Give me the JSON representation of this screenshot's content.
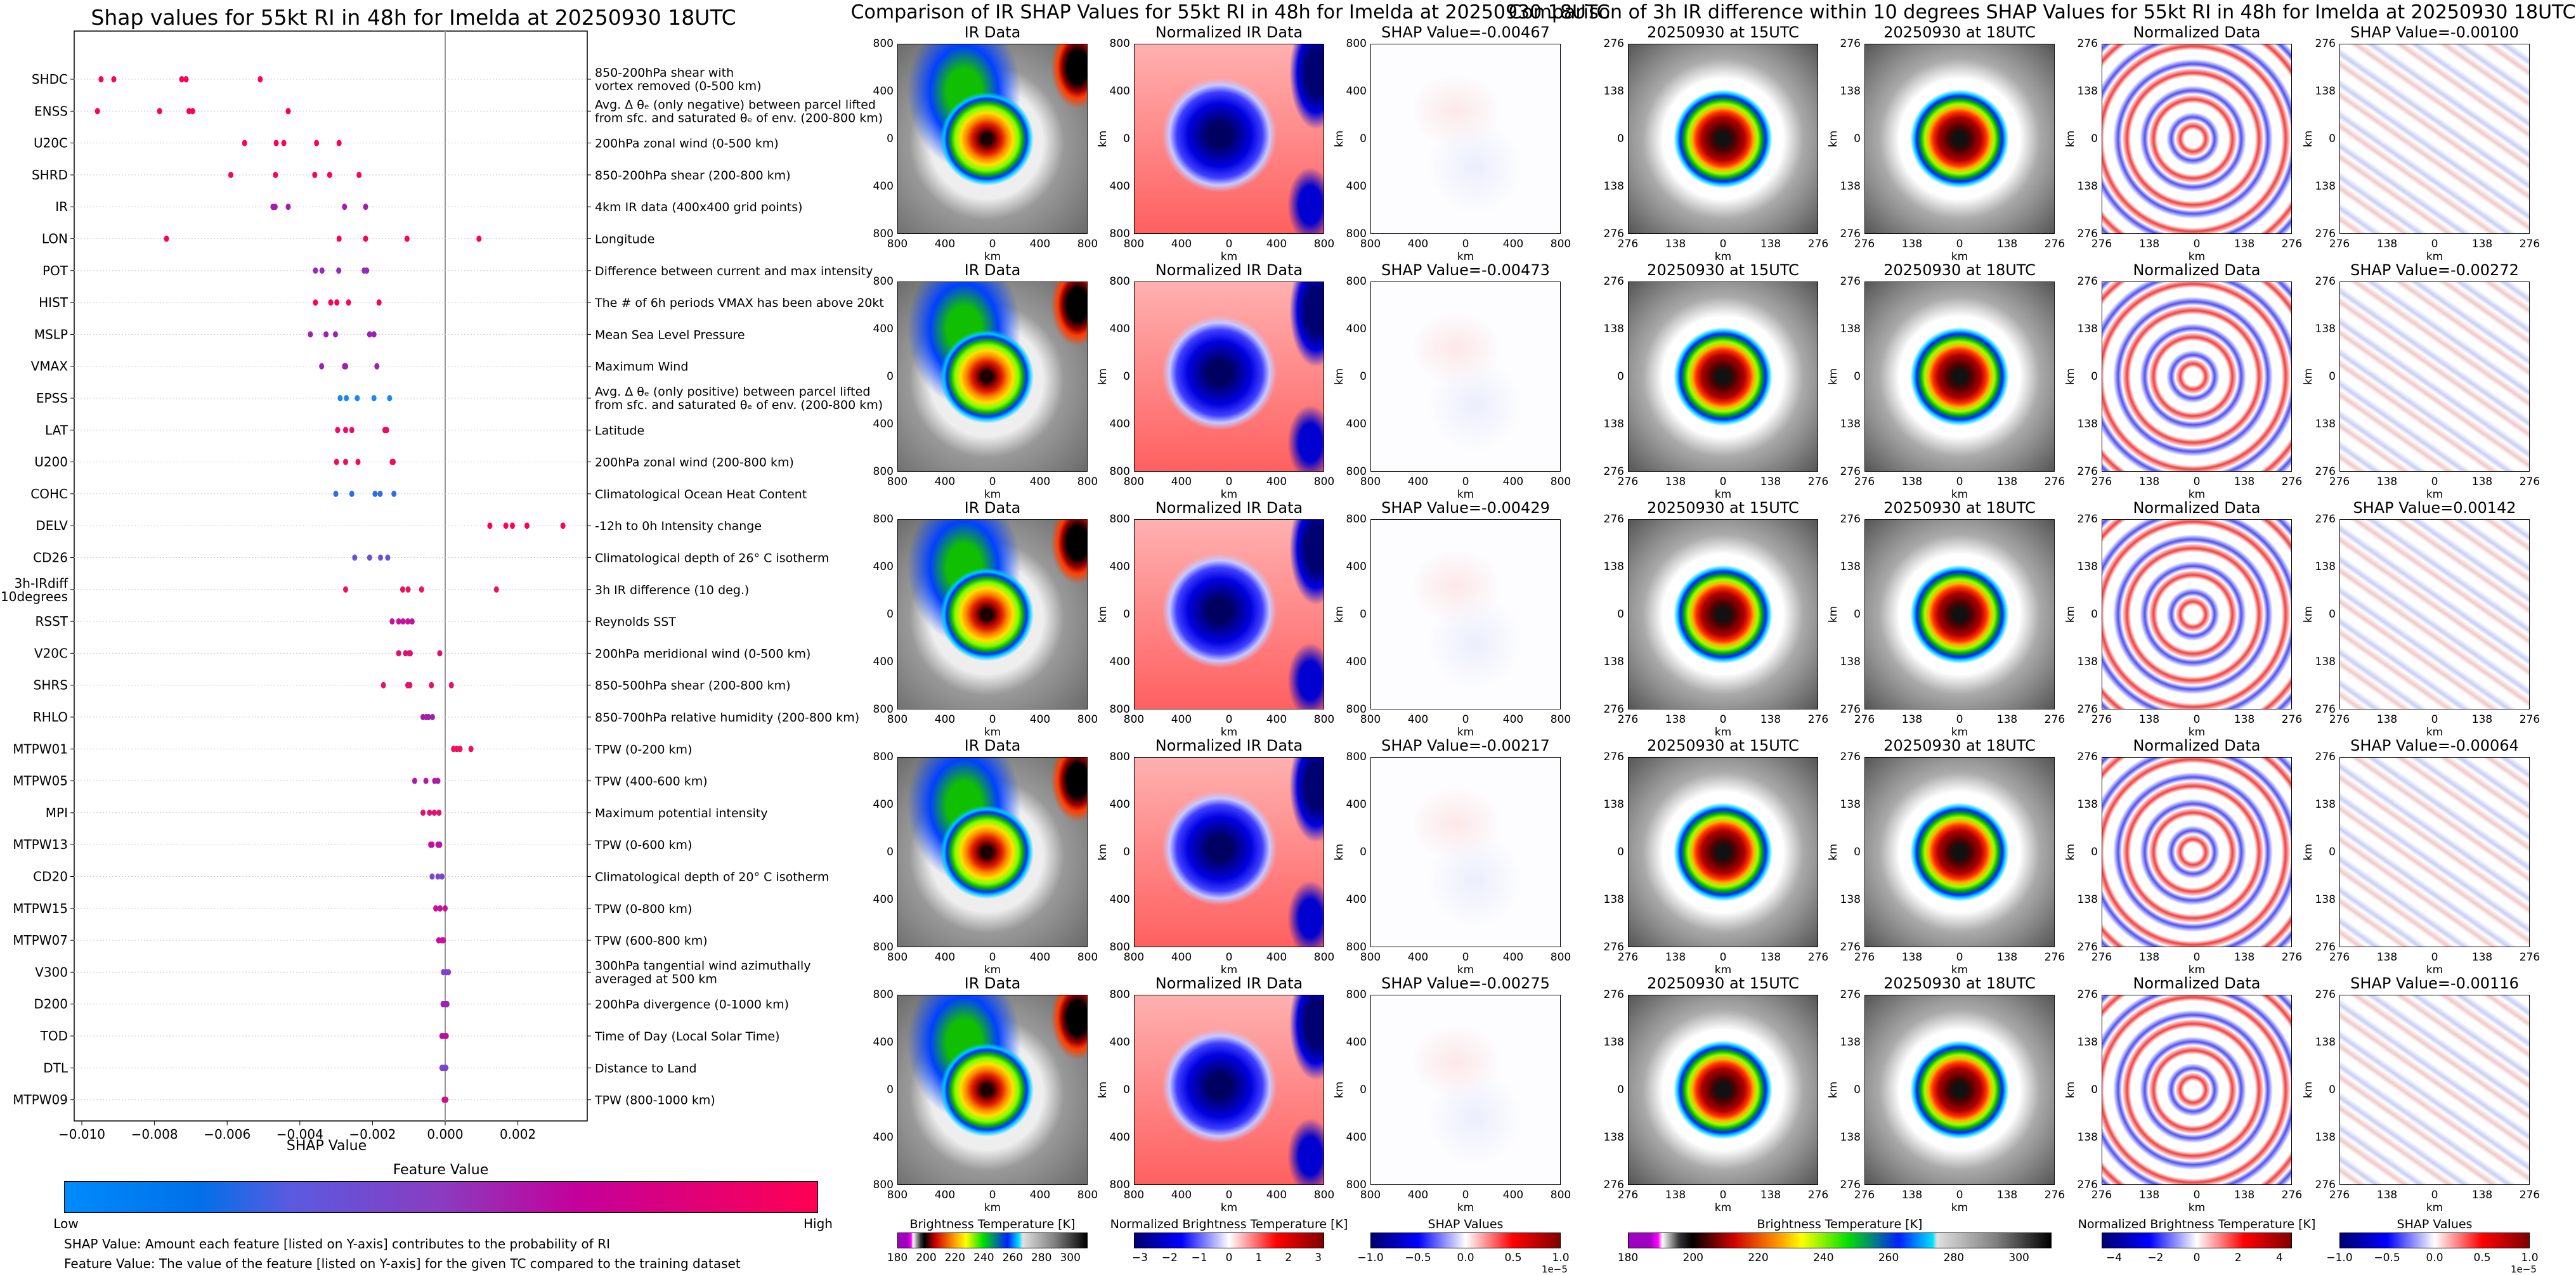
{
  "left_chart": {
    "title": "Shap values for 55kt RI in 48h for Imelda at 20250930 18UTC",
    "xlabel": "SHAP Value",
    "colorbar_title": "Feature Value",
    "colorbar_low": "Low",
    "colorbar_high": "High",
    "note1": "SHAP Value: Amount each feature [listed on Y-axis] contributes to the probability of RI",
    "note2": "Feature Value: The value of the feature [listed on Y-axis] for the given TC compared to the training dataset"
  },
  "chart_data": {
    "type": "scatter",
    "title": "Shap values for 55kt RI in 48h for Imelda at 20250930 18UTC",
    "xlabel": "SHAP Value",
    "xlim": [
      -0.0103,
      0.0039
    ],
    "xticks": [
      "−0.010",
      "−0.008",
      "−0.006",
      "−0.004",
      "−0.002",
      "0.000",
      "0.002"
    ],
    "xtick_values": [
      -0.01,
      -0.008,
      -0.006,
      -0.004,
      -0.002,
      0.0,
      0.002
    ],
    "colormap": {
      "low": "#008bfb",
      "high": "#ff0052"
    },
    "features": [
      {
        "name": "SHDC",
        "desc": "850-200hPa shear with\nvortex removed (0-500 km)",
        "color": "#ff0052",
        "values": [
          -0.00947,
          -0.00912,
          -0.00725,
          -0.00713,
          -0.00509
        ]
      },
      {
        "name": "ENSS",
        "desc": "Avg. Δ θₑ (only negative) between parcel lifted\nfrom sfc. and saturated θₑ of env. (200-800 km)",
        "color": "#ff0052",
        "values": [
          -0.00957,
          -0.00786,
          -0.00705,
          -0.00695,
          -0.00432
        ]
      },
      {
        "name": "U20C",
        "desc": "200hPa zonal wind (0-500 km)",
        "color": "#ff0052",
        "values": [
          -0.00552,
          -0.00465,
          -0.00444,
          -0.00354,
          -0.00292
        ]
      },
      {
        "name": "SHRD",
        "desc": "850-200hPa shear (200-800 km)",
        "color": "#ff0055",
        "values": [
          -0.0059,
          -0.00467,
          -0.00359,
          -0.00318,
          -0.00237
        ]
      },
      {
        "name": "IR",
        "desc": "4km IR data (400x400 grid points)",
        "color": "#a81ab0",
        "values": [
          -0.00474,
          -0.00468,
          -0.00432,
          -0.00277,
          -0.00219
        ]
      },
      {
        "name": "LON",
        "desc": "Longitude",
        "color": "#ff0055",
        "values": [
          -0.00767,
          -0.00292,
          -0.00219,
          -0.00105,
          0.00093
        ]
      },
      {
        "name": "POT",
        "desc": "Difference between current and max intensity",
        "color": "#9a28b8",
        "values": [
          -0.00357,
          -0.00339,
          -0.00293,
          -0.00223,
          -0.00216
        ]
      },
      {
        "name": "HIST",
        "desc": "The # of 6h periods VMAX has been above 20kt",
        "color": "#ff0058",
        "values": [
          -0.00357,
          -0.00315,
          -0.00298,
          -0.00266,
          -0.00182
        ]
      },
      {
        "name": "MSLP",
        "desc": "Mean Sea Level Pressure",
        "color": "#a020b0",
        "values": [
          -0.00371,
          -0.00328,
          -0.00302,
          -0.00208,
          -0.00196
        ]
      },
      {
        "name": "VMAX",
        "desc": "Maximum Wind",
        "color": "#a020b0",
        "values": [
          -0.0034,
          -0.00277,
          -0.00274,
          -0.00188
        ]
      },
      {
        "name": "EPSS",
        "desc": "Avg. Δ θₑ (only positive) between parcel lifted\nfrom sfc. and saturated θₑ of env. (200-800 km)",
        "color": "#1a8af0",
        "values": [
          -0.00289,
          -0.00272,
          -0.00242,
          -0.00196,
          -0.00153
        ]
      },
      {
        "name": "LAT",
        "desc": "Latitude",
        "color": "#ee0a66",
        "values": [
          -0.00296,
          -0.00274,
          -0.00257,
          -0.00166,
          -0.00161
        ]
      },
      {
        "name": "U200",
        "desc": "200hPa zonal wind (200-800 km)",
        "color": "#f50a5a",
        "values": [
          -0.00299,
          -0.00274,
          -0.0024,
          -0.00146,
          -0.00143
        ]
      },
      {
        "name": "COHC",
        "desc": "Climatological Ocean Heat Content",
        "color": "#2a6ee8",
        "values": [
          -0.00301,
          -0.00257,
          -0.00193,
          -0.00179,
          -0.00141
        ]
      },
      {
        "name": "DELV",
        "desc": "-12h to 0h Intensity change",
        "color": "#ff0052",
        "values": [
          0.00123,
          0.00167,
          0.00185,
          0.00225,
          0.00324
        ]
      },
      {
        "name": "CD26",
        "desc": "Climatological depth of 26° C isotherm",
        "color": "#6a50d8",
        "values": [
          -0.00249,
          -0.00208,
          -0.00178,
          -0.00158
        ]
      },
      {
        "name": "3h-IRdiff\n10degrees",
        "desc": "3h IR difference (10 deg.)",
        "color": "#f0105a",
        "values": [
          -0.00274,
          -0.00117,
          -0.00102,
          -0.00065,
          0.00141
        ]
      },
      {
        "name": "RSST",
        "desc": "Reynolds SST",
        "color": "#c8109a",
        "values": [
          -0.00146,
          -0.00128,
          -0.00116,
          -0.00103,
          -0.00091
        ]
      },
      {
        "name": "V20C",
        "desc": "200hPa meridional wind (0-500 km)",
        "color": "#e01070",
        "values": [
          -0.00128,
          -0.00109,
          -0.00099,
          -0.00096,
          -0.00015
        ]
      },
      {
        "name": "SHRS",
        "desc": "850-500hPa shear (200-800 km)",
        "color": "#ea1065",
        "values": [
          -0.0017,
          -0.00103,
          -0.00097,
          -0.00038,
          0.00017
        ]
      },
      {
        "name": "RHLO",
        "desc": "850-700hPa relative humidity (200-800 km)",
        "color": "#a020a8",
        "values": [
          -0.00061,
          -0.00052,
          -0.00046,
          -0.00035
        ]
      },
      {
        "name": "MTPW01",
        "desc": "TPW (0-200 km)",
        "color": "#f01060",
        "values": [
          0.00023,
          0.00032,
          0.00041,
          0.00071
        ]
      },
      {
        "name": "MTPW05",
        "desc": "TPW (400-600 km)",
        "color": "#b018a8",
        "values": [
          -0.00084,
          -0.00053,
          -0.00029,
          -0.0002
        ]
      },
      {
        "name": "MPI",
        "desc": "Maximum potential intensity",
        "color": "#e01070",
        "values": [
          -0.00061,
          -0.00043,
          -0.0003,
          -0.00017
        ]
      },
      {
        "name": "MTPW13",
        "desc": "TPW (0-600 km)",
        "color": "#c010a0",
        "values": [
          -0.0004,
          -0.00036,
          -0.0002,
          -0.00015
        ]
      },
      {
        "name": "CD20",
        "desc": "Climatological depth of 20° C isotherm",
        "color": "#7a45d0",
        "values": [
          -0.00036,
          -0.0002,
          -9e-05
        ]
      },
      {
        "name": "MTPW15",
        "desc": "TPW (0-800 km)",
        "color": "#c8109a",
        "values": [
          -0.00026,
          -0.00014,
          0.0
        ]
      },
      {
        "name": "MTPW07",
        "desc": "TPW (600-800 km)",
        "color": "#c810a0",
        "values": [
          -0.00018,
          -9e-05,
          -5e-05
        ]
      },
      {
        "name": "V300",
        "desc": "300hPa tangential wind azimuthally\naveraged at 500 km",
        "color": "#8040d0",
        "values": [
          -5e-05,
          3e-05,
          9e-05
        ]
      },
      {
        "name": "D200",
        "desc": "200hPa divergence (0-1000 km)",
        "color": "#a020b0",
        "values": [
          -6e-05,
          0.0,
          5e-05
        ]
      },
      {
        "name": "TOD",
        "desc": "Time of Day (Local Solar Time)",
        "color": "#c0109a",
        "values": [
          -9e-05,
          -3e-05,
          3e-05
        ]
      },
      {
        "name": "DTL",
        "desc": "Distance to Land",
        "color": "#7a45d0",
        "values": [
          -9e-05,
          -3e-05,
          2e-05
        ]
      },
      {
        "name": "MTPW09",
        "desc": "TPW (800-1000 km)",
        "color": "#d0108a",
        "values": [
          -3e-05,
          0.0,
          2e-05
        ]
      }
    ]
  },
  "ir_group": {
    "title": "Comparison of IR SHAP Values for 55kt RI in 48h for Imelda at 20250930 18UTC",
    "panel_titles": [
      "IR Data",
      "Normalized IR Data"
    ],
    "shap_prefix": "SHAP Value=",
    "shap_values": [
      "-0.00467",
      "-0.00473",
      "-0.00429",
      "-0.00217",
      "-0.00275"
    ],
    "ticks": [
      "800",
      "400",
      "0",
      "400",
      "800"
    ],
    "axis_label": "km",
    "colorbars": [
      {
        "title": "Brightness Temperature [K]",
        "ticks": [
          "180",
          "200",
          "220",
          "240",
          "260",
          "280",
          "300"
        ],
        "range": [
          180,
          312
        ],
        "values": [
          180,
          200,
          220,
          240,
          260,
          280,
          300
        ]
      },
      {
        "title": "Normalized Brightness Temperature [K]",
        "ticks": [
          "−3",
          "−2",
          "−1",
          "0",
          "1",
          "2",
          "3"
        ],
        "range": [
          -3.2,
          3.2
        ],
        "values": [
          -3,
          -2,
          -1,
          0,
          1,
          2,
          3
        ]
      },
      {
        "title": "SHAP Values",
        "ticks": [
          "−1.0",
          "−0.5",
          "0.0",
          "0.5",
          "1.0"
        ],
        "range": [
          -1,
          1
        ],
        "values": [
          -1,
          -0.5,
          0,
          0.5,
          1
        ],
        "exponent": "1e−5"
      }
    ]
  },
  "diff_group": {
    "title": "Comparison of 3h IR difference within 10 degrees SHAP Values for 55kt RI in 48h for Imelda at 20250930 18UTC",
    "panel_titles": [
      "20250930 at 15UTC",
      "20250930 at 18UTC",
      "Normalized Data"
    ],
    "shap_prefix": "SHAP Value=",
    "shap_values": [
      "-0.00100",
      "-0.00272",
      "0.00142",
      "-0.00064",
      "-0.00116"
    ],
    "ticks": [
      "276",
      "138",
      "0",
      "138",
      "276"
    ],
    "axis_label": "km",
    "colorbars": [
      {
        "title": "Brightness Temperature [K]",
        "ticks": [
          "180",
          "200",
          "220",
          "240",
          "260",
          "280",
          "300"
        ],
        "range": [
          180,
          310
        ],
        "values": [
          180,
          200,
          220,
          240,
          260,
          280,
          300
        ]
      },
      {
        "title": "Normalized Brightness Temperature [K]",
        "ticks": [
          "−4",
          "−2",
          "0",
          "2",
          "4"
        ],
        "range": [
          -4.6,
          4.6
        ],
        "values": [
          -4,
          -2,
          0,
          2,
          4
        ]
      },
      {
        "title": "SHAP Values",
        "ticks": [
          "−1.0",
          "−0.5",
          "0.0",
          "0.5",
          "1.0"
        ],
        "range": [
          -1,
          1
        ],
        "values": [
          -1,
          -0.5,
          0,
          0.5,
          1
        ],
        "exponent": "1e−5"
      }
    ]
  }
}
